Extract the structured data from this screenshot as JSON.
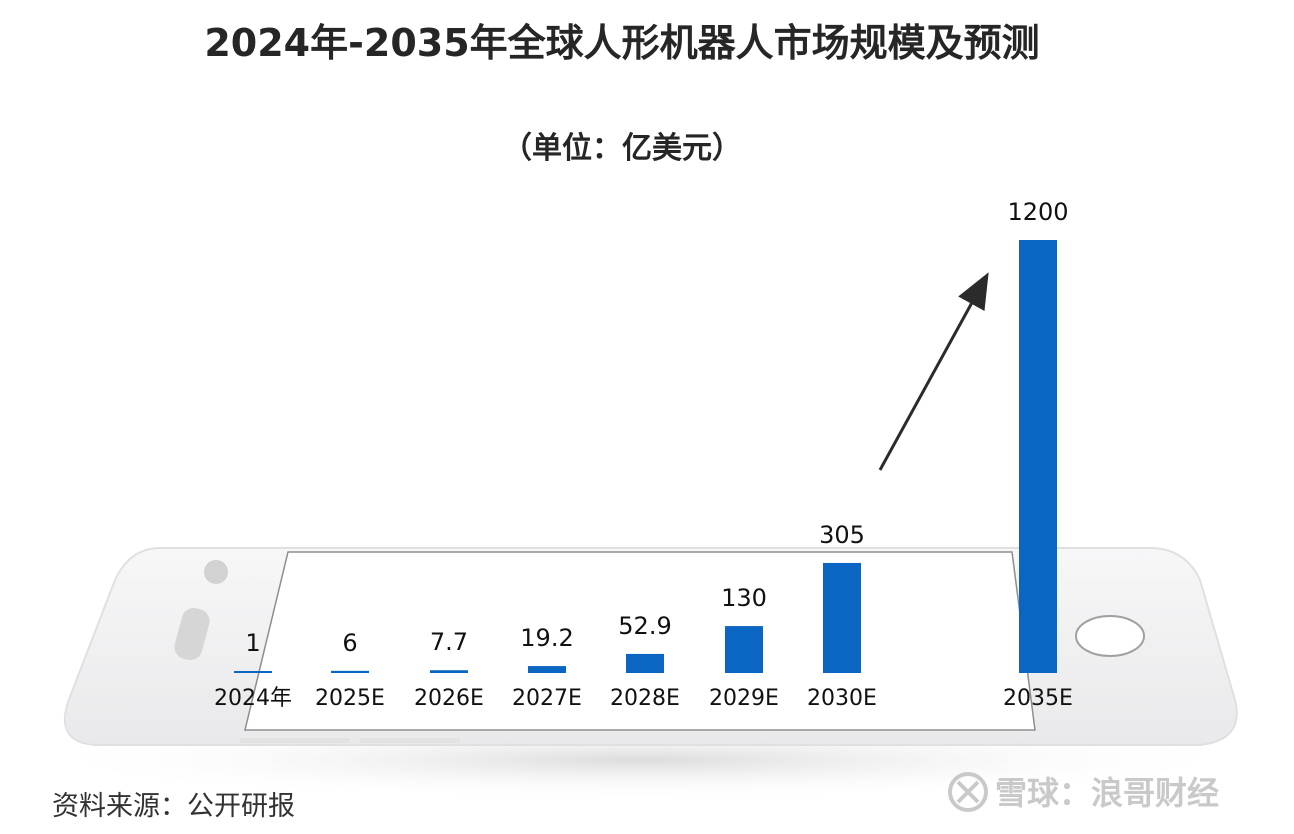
{
  "chart_data": {
    "type": "bar",
    "title": "2024年-2035年全球人形机器人市场规模及预测",
    "subtitle": "（单位：亿美元）",
    "categories": [
      "2024年",
      "2025E",
      "2026E",
      "2027E",
      "2028E",
      "2029E",
      "2030E",
      "2035E"
    ],
    "values": [
      1,
      6,
      7.7,
      19.2,
      52.9,
      130,
      305,
      1200
    ],
    "value_labels": [
      "1",
      "6",
      "7.7",
      "19.2",
      "52.9",
      "130",
      "305",
      "1200"
    ],
    "bar_color": "#0a66c2",
    "grid": false,
    "legend": "none"
  },
  "source": "资料来源：公开研报",
  "watermark": {
    "text": "雪球：浪哥财经",
    "icon": "xueqiu-logo-icon"
  }
}
